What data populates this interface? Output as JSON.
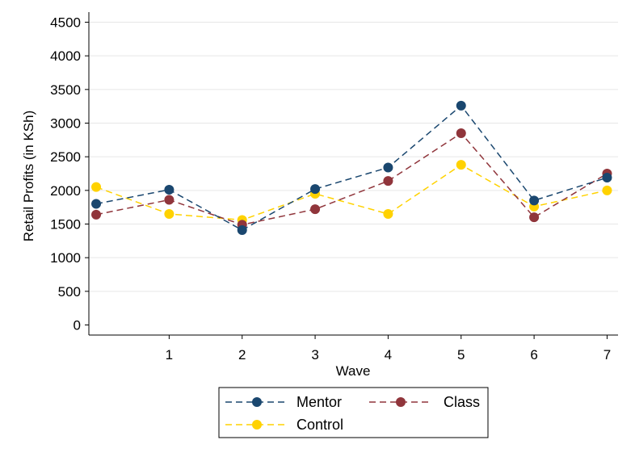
{
  "chart_data": {
    "type": "line",
    "title": "",
    "xlabel": "Wave",
    "ylabel": "Retail Profits (in KSh)",
    "x": [
      0,
      1,
      2,
      3,
      4,
      5,
      6,
      7
    ],
    "x_ticks": [
      1,
      2,
      3,
      4,
      5,
      6,
      7
    ],
    "x_tick_labels": [
      "1",
      "2",
      "3",
      "4",
      "5",
      "6",
      "7"
    ],
    "xlim": [
      -0.1,
      7.15
    ],
    "ylim": [
      -150,
      4650
    ],
    "y_ticks": [
      0,
      500,
      1000,
      1500,
      2000,
      2500,
      3000,
      3500,
      4000,
      4500
    ],
    "y_tick_labels": [
      "0",
      "500",
      "1000",
      "1500",
      "2000",
      "2500",
      "3000",
      "3500",
      "4000",
      "4500"
    ],
    "grid": true,
    "legend_position": "bottom",
    "series": [
      {
        "name": "Mentor",
        "color": "#1a476f",
        "values": [
          1800,
          2010,
          1410,
          2020,
          2340,
          3260,
          1850,
          2190
        ]
      },
      {
        "name": "Class",
        "color": "#90353b",
        "values": [
          1640,
          1860,
          1490,
          1720,
          2140,
          2850,
          1600,
          2250
        ]
      },
      {
        "name": "Control",
        "color": "#ffd200",
        "values": [
          2050,
          1650,
          1560,
          1950,
          1650,
          2380,
          1760,
          2000
        ]
      }
    ]
  }
}
